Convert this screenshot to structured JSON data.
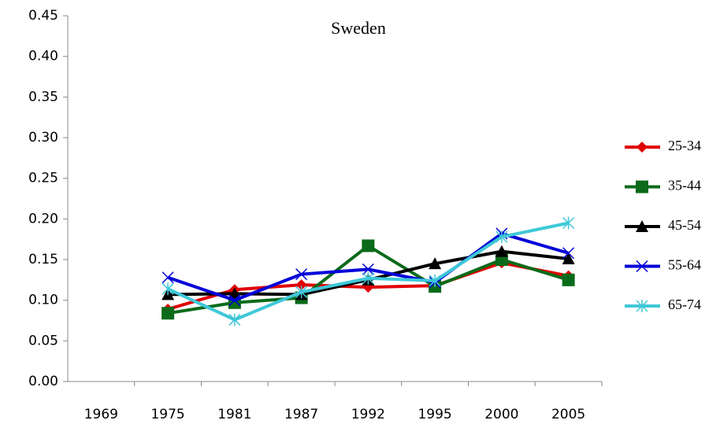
{
  "chart_data": {
    "type": "line",
    "title": "Sweden",
    "categories": [
      "1969",
      "1975",
      "1981",
      "1987",
      "1992",
      "1995",
      "2000",
      "2005"
    ],
    "series": [
      {
        "name": "25-34",
        "color": "#e00000",
        "marker": "diamond",
        "values": [
          null,
          0.089,
          0.113,
          0.119,
          0.116,
          0.118,
          0.146,
          0.13
        ]
      },
      {
        "name": "35-44",
        "color": "#0b6b1a",
        "marker": "square",
        "values": [
          null,
          0.084,
          0.097,
          0.103,
          0.167,
          0.117,
          0.15,
          0.125
        ]
      },
      {
        "name": "45-54",
        "color": "#000000",
        "marker": "triangle",
        "values": [
          null,
          0.107,
          0.108,
          0.107,
          0.125,
          0.145,
          0.16,
          0.151
        ]
      },
      {
        "name": "55-64",
        "color": "#0000d8",
        "marker": "x",
        "values": [
          null,
          0.128,
          0.1,
          0.132,
          0.138,
          0.122,
          0.182,
          0.158
        ]
      },
      {
        "name": "65-74",
        "color": "#3ec8d8",
        "marker": "star",
        "values": [
          null,
          0.114,
          0.076,
          0.11,
          0.127,
          0.124,
          0.178,
          0.195
        ]
      }
    ],
    "ylim": [
      0,
      0.45
    ],
    "yticks": [
      {
        "value": 0,
        "label": "0.00"
      },
      0.05,
      {
        "value": 0.1,
        "label": "0.10"
      },
      0.15,
      {
        "value": 0.2,
        "label": "0.20"
      },
      0.25,
      {
        "value": 0.3,
        "label": "0.30"
      },
      0.35,
      {
        "value": 0.4,
        "label": "0.40"
      },
      0.45
    ],
    "legend": "right",
    "grid": false
  }
}
